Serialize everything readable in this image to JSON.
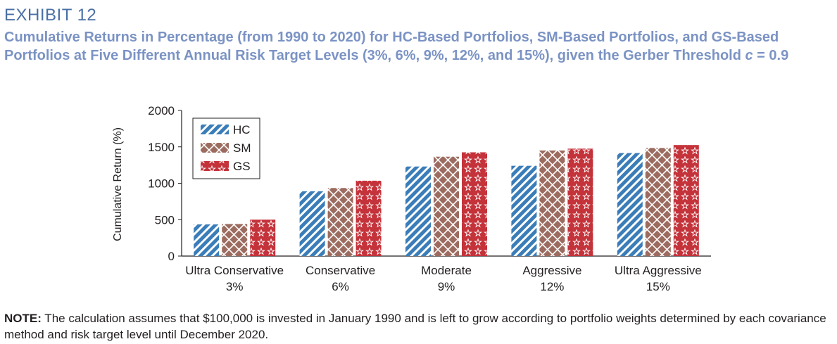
{
  "header": {
    "exhibit": "EXHIBIT 12",
    "subtitle_main": "Cumulative Returns in Percentage (from 1990 to 2020) for HC-Based Portfolios, SM-Based Portfolios, and GS-Based Portfolios at Five Different Annual Risk Target Levels (3%, 6%, 9%, 12%, and 15%), given the Gerber Threshold ",
    "subtitle_var": "c",
    "subtitle_tail": " = 0.9"
  },
  "note": {
    "label": "NOTE:",
    "text": " The calculation assumes that $100,000 is invested in January 1990 and is left to grow according to portfolio weights determined by each covariance method and risk target level until December 2020."
  },
  "colors": {
    "hc": "#3a7db8",
    "sm": "#9c6b5f",
    "gs": "#c4323a"
  },
  "chart_data": {
    "type": "bar",
    "title": "",
    "xlabel": "",
    "ylabel": "Cumulative Return (%)",
    "ylim": [
      0,
      2000
    ],
    "yticks": [
      0,
      500,
      1000,
      1500,
      2000
    ],
    "categories": [
      {
        "name": "Ultra Conservative",
        "level": "3%"
      },
      {
        "name": "Conservative",
        "level": "6%"
      },
      {
        "name": "Moderate",
        "level": "9%"
      },
      {
        "name": "Aggressive",
        "level": "12%"
      },
      {
        "name": "Ultra Aggressive",
        "level": "15%"
      }
    ],
    "series": [
      {
        "name": "HC",
        "values": [
          435,
          890,
          1230,
          1240,
          1415
        ]
      },
      {
        "name": "SM",
        "values": [
          440,
          935,
          1365,
          1450,
          1485
        ]
      },
      {
        "name": "GS",
        "values": [
          500,
          1035,
          1425,
          1475,
          1525
        ]
      }
    ],
    "legend": "top-left"
  }
}
